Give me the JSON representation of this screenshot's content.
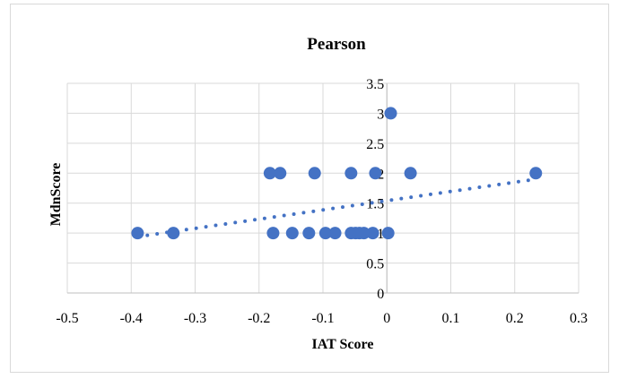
{
  "chart_data": {
    "type": "scatter",
    "title": "Pearson",
    "xlabel": "IAT Score",
    "ylabel": "MdnScore",
    "xlim": [
      -0.5,
      0.3
    ],
    "ylim": [
      0,
      3.5
    ],
    "x_ticks": [
      "-0.5",
      "-0.4",
      "-0.3",
      "-0.2",
      "-0.1",
      "0",
      "0.1",
      "0.2",
      "0.3"
    ],
    "y_ticks": [
      "0",
      "0.5",
      "1",
      "1.5",
      "2",
      "2.5",
      "3",
      "3.5"
    ],
    "grid": true,
    "legend": "none",
    "point_color": "#4472c4",
    "points": [
      {
        "x": 0.006,
        "y": 3
      },
      {
        "x": -0.183,
        "y": 2
      },
      {
        "x": -0.167,
        "y": 2
      },
      {
        "x": -0.113,
        "y": 2
      },
      {
        "x": -0.056,
        "y": 2
      },
      {
        "x": -0.018,
        "y": 2
      },
      {
        "x": 0.037,
        "y": 2
      },
      {
        "x": 0.233,
        "y": 2
      },
      {
        "x": -0.39,
        "y": 1
      },
      {
        "x": -0.334,
        "y": 1
      },
      {
        "x": -0.178,
        "y": 1
      },
      {
        "x": -0.148,
        "y": 1
      },
      {
        "x": -0.122,
        "y": 1
      },
      {
        "x": -0.096,
        "y": 1
      },
      {
        "x": -0.081,
        "y": 1
      },
      {
        "x": -0.056,
        "y": 1
      },
      {
        "x": -0.049,
        "y": 1
      },
      {
        "x": -0.043,
        "y": 1
      },
      {
        "x": -0.036,
        "y": 1
      },
      {
        "x": -0.022,
        "y": 1
      },
      {
        "x": 0.002,
        "y": 1
      }
    ],
    "trendline": {
      "type": "linear",
      "style": "dotted",
      "x": [
        -0.39,
        0.233
      ],
      "y": [
        0.94,
        1.9
      ]
    }
  }
}
